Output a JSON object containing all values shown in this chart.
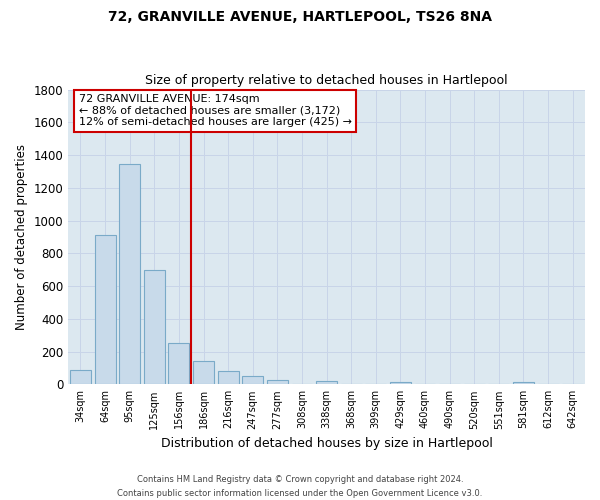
{
  "title": "72, GRANVILLE AVENUE, HARTLEPOOL, TS26 8NA",
  "subtitle": "Size of property relative to detached houses in Hartlepool",
  "xlabel": "Distribution of detached houses by size in Hartlepool",
  "ylabel": "Number of detached properties",
  "bar_labels": [
    "34sqm",
    "64sqm",
    "95sqm",
    "125sqm",
    "156sqm",
    "186sqm",
    "216sqm",
    "247sqm",
    "277sqm",
    "308sqm",
    "338sqm",
    "368sqm",
    "399sqm",
    "429sqm",
    "460sqm",
    "490sqm",
    "520sqm",
    "551sqm",
    "581sqm",
    "612sqm",
    "642sqm"
  ],
  "bar_values": [
    90,
    910,
    1345,
    700,
    250,
    145,
    80,
    50,
    25,
    0,
    20,
    0,
    0,
    15,
    0,
    0,
    0,
    0,
    15,
    0,
    0
  ],
  "bar_color": "#c8daea",
  "bar_edge_color": "#7aaac8",
  "vline_color": "#cc0000",
  "vline_pos": 4.5,
  "ylim": [
    0,
    1800
  ],
  "yticks": [
    0,
    200,
    400,
    600,
    800,
    1000,
    1200,
    1400,
    1600,
    1800
  ],
  "annotation_title": "72 GRANVILLE AVENUE: 174sqm",
  "annotation_line1": "← 88% of detached houses are smaller (3,172)",
  "annotation_line2": "12% of semi-detached houses are larger (425) →",
  "annotation_box_color": "#ffffff",
  "annotation_box_edge": "#cc0000",
  "footer_line1": "Contains HM Land Registry data © Crown copyright and database right 2024.",
  "footer_line2": "Contains public sector information licensed under the Open Government Licence v3.0.",
  "grid_color": "#c8d4e8",
  "background_color": "#dce8f0"
}
